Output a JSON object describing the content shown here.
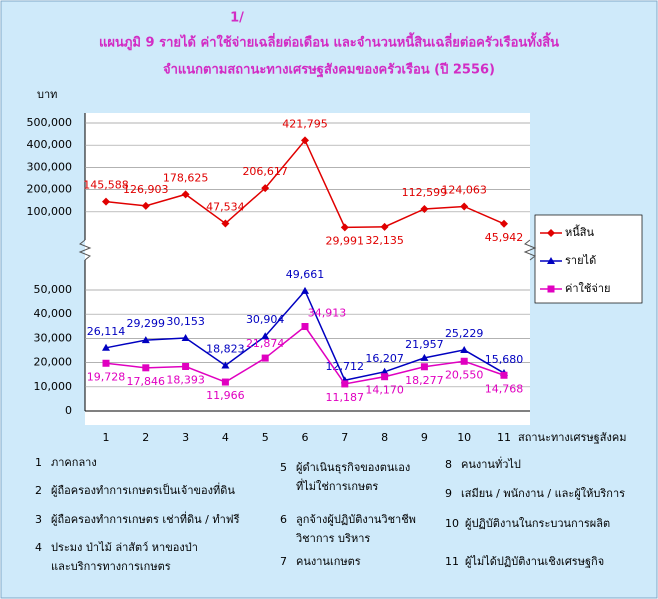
{
  "chart_data": {
    "type": "line",
    "title": "แผนภูมิ 9 รายได้ ค่าใช้จ่ายเฉลี่ยต่อเดือน และจำนวนหนี้สินเฉลี่ยต่อครัวเรือนทั้งสิ้น",
    "title_note": "1/",
    "subtitle": "จำแนกตามสถานะทางเศรษฐสังคมของครัวเรือน (ปี 2556)",
    "y_label": "บาท",
    "x_label": "สถานะทางเศรษฐสังคม",
    "categories": [
      "1",
      "2",
      "3",
      "4",
      "5",
      "6",
      "7",
      "8",
      "9",
      "10",
      "11"
    ],
    "ylim": [
      0,
      50000
    ],
    "yticks": [
      0,
      {
        "value": 10000,
        "label": "10,000"
      },
      {
        "value": 20000,
        "label": "20,000"
      },
      {
        "value": 30000,
        "label": "30,000"
      },
      {
        "value": 40000,
        "label": "40,000"
      },
      {
        "value": 50000,
        "label": "50,000"
      }
    ],
    "y2lim": [
      0,
      500000
    ],
    "y2ticks": [
      {
        "value": 100000,
        "label": "100,000"
      },
      {
        "value": 200000,
        "label": "200,000"
      },
      {
        "value": 300000,
        "label": "300,000"
      },
      {
        "value": 400000,
        "label": "400,000"
      },
      {
        "value": 500000,
        "label": "500,000"
      }
    ],
    "grid": true,
    "legend": "right",
    "series": [
      {
        "name": "หนี้สิน",
        "color": "#e00000",
        "axis": "y2",
        "marker": "diamond",
        "values": [
          145588,
          126903,
          178625,
          47534,
          206617,
          421795,
          29991,
          32135,
          112599,
          124063,
          45942
        ],
        "value_labels": [
          "145,588",
          "126,903",
          "178,625",
          "47,534",
          "206,617",
          "421,795",
          "29,991",
          "32,135",
          "112,599",
          "124,063",
          "45,942"
        ]
      },
      {
        "name": "รายได้",
        "color": "#0000c0",
        "marker": "triangle",
        "values": [
          26114,
          29299,
          30153,
          18823,
          30904,
          49661,
          12712,
          16207,
          21957,
          25229,
          15680
        ],
        "value_labels": [
          "26,114",
          "29,299",
          "30,153",
          "18,823",
          "30,904",
          "49,661",
          "12,712",
          "16,207",
          "21,957",
          "25,229",
          "15,680"
        ]
      },
      {
        "name": "ค่าใช้จ่าย",
        "color": "#e000c0",
        "marker": "square",
        "values": [
          19728,
          17846,
          18393,
          11966,
          21874,
          34913,
          11187,
          14170,
          18277,
          20550,
          14768
        ],
        "value_labels": [
          "19,728",
          "17,846",
          "18,393",
          "11,966",
          "21,874",
          "34,913",
          "11,187",
          "14,170",
          "18,277",
          "20,550",
          "14,768"
        ]
      }
    ],
    "notes": [
      {
        "number": "1",
        "lines": [
          "ภาคกลาง"
        ]
      },
      {
        "number": "2",
        "lines": [
          "ผู้ถือครองทำการเกษตรเป็นเจ้าของที่ดิน"
        ]
      },
      {
        "number": "3",
        "lines": [
          "ผู้ถือครองทำการเกษตร เช่าที่ดิน / ทำฟรี"
        ]
      },
      {
        "number": "4",
        "lines": [
          "ประมง ป่าไม้ ล่าสัตว์ หาของป่า",
          "และบริการทางการเกษตร"
        ]
      },
      {
        "number": "5",
        "lines": [
          "ผู้ดำเนินธุรกิจของตนเอง",
          "ที่ไม่ใช่การเกษตร"
        ]
      },
      {
        "number": "6",
        "lines": [
          "ลูกจ้างผู้ปฏิบัติงานวิชาชีพ",
          "วิชาการ บริหาร"
        ]
      },
      {
        "number": "7",
        "lines": [
          "คนงานเกษตร"
        ]
      },
      {
        "number": "8",
        "lines": [
          "คนงานทั่วไป"
        ]
      },
      {
        "number": "9",
        "lines": [
          "เสมียน / พนักงาน / และผู้ให้บริการ"
        ]
      },
      {
        "number": "10",
        "lines": [
          "ผู้ปฏิบัติงานในกระบวนการผลิต"
        ]
      },
      {
        "number": "11",
        "lines": [
          "ผู้ไม่ได้ปฏิบัติงานเชิงเศรษฐกิจ"
        ]
      }
    ]
  }
}
